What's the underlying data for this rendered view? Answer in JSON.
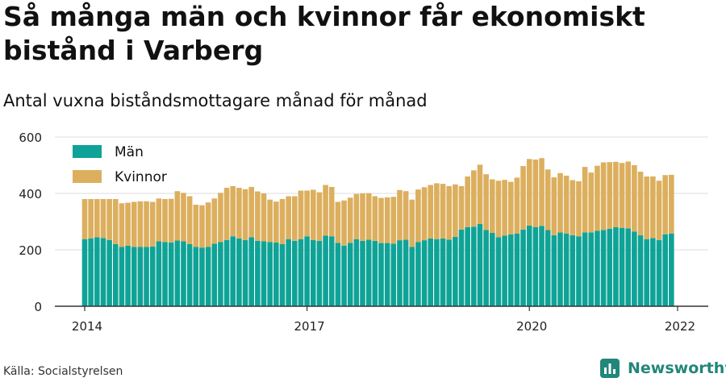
{
  "header": {
    "title": "Så många män och kvinnor får ekonomiskt bistånd i Varberg",
    "subtitle": "Antal vuxna biståndsmottagare månad för månad"
  },
  "footer": {
    "source": "Källa: Socialstyrelsen",
    "brand": "Newsworthy",
    "brand_icon": "bar-chart-logo-icon"
  },
  "colors": {
    "man": "#0fa397",
    "kvinnor": "#dcaf5e",
    "grid": "#dddddd",
    "axis": "#333333",
    "brand": "#22867a"
  },
  "chart_data": {
    "type": "bar",
    "stacked": true,
    "x_start": "2014-01",
    "x_interval": "month",
    "xticks": [
      "2014",
      "2017",
      "2020",
      "2022"
    ],
    "yticks": [
      0,
      200,
      400,
      600
    ],
    "ylim": [
      0,
      600
    ],
    "grid": true,
    "legend_position": "top-left",
    "series": [
      {
        "name": "Män",
        "color": "#0fa397",
        "values": [
          238,
          240,
          245,
          242,
          235,
          220,
          210,
          215,
          210,
          210,
          210,
          212,
          230,
          228,
          226,
          233,
          230,
          220,
          210,
          208,
          210,
          222,
          228,
          235,
          248,
          240,
          235,
          245,
          232,
          230,
          228,
          226,
          220,
          238,
          232,
          238,
          248,
          235,
          232,
          250,
          248,
          225,
          215,
          225,
          238,
          232,
          236,
          232,
          224,
          224,
          222,
          234,
          236,
          210,
          228,
          234,
          240,
          238,
          240,
          236,
          246,
          272,
          280,
          282,
          292,
          270,
          260,
          245,
          250,
          255,
          258,
          272,
          286,
          280,
          285,
          270,
          252,
          262,
          258,
          252,
          248,
          262,
          262,
          268,
          270,
          275,
          280,
          278,
          276,
          265,
          252,
          238,
          242,
          235,
          255,
          258
        ]
      },
      {
        "name": "Kvinnor",
        "color": "#dcaf5e",
        "values": [
          142,
          140,
          135,
          138,
          145,
          160,
          155,
          152,
          160,
          162,
          162,
          158,
          152,
          152,
          155,
          175,
          172,
          170,
          150,
          150,
          158,
          160,
          174,
          185,
          178,
          180,
          180,
          178,
          175,
          170,
          150,
          145,
          160,
          152,
          158,
          172,
          162,
          178,
          172,
          180,
          175,
          145,
          160,
          160,
          160,
          168,
          165,
          158,
          160,
          162,
          166,
          178,
          172,
          168,
          186,
          188,
          190,
          198,
          194,
          190,
          186,
          154,
          180,
          200,
          210,
          198,
          190,
          200,
          198,
          186,
          198,
          225,
          236,
          240,
          240,
          215,
          205,
          210,
          205,
          195,
          195,
          232,
          212,
          230,
          240,
          236,
          232,
          230,
          237,
          235,
          225,
          222,
          218,
          210,
          210,
          208
        ]
      }
    ]
  }
}
